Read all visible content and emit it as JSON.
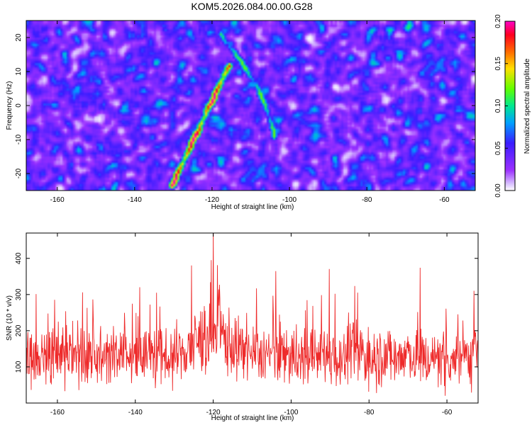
{
  "title": "KOM5.2026.084.00.00.G28",
  "colors": {
    "signal_line": "#ee2a2a",
    "frame": "#000000",
    "background": "#ffffff",
    "colormap": [
      "#ffffff",
      "#9b30ff",
      "#3a1cff",
      "#00a0ff",
      "#00e890",
      "#60ff00",
      "#ffe000",
      "#ff6a00",
      "#ff0020",
      "#ff00c8"
    ]
  },
  "chart_data": [
    {
      "type": "heatmap",
      "name": "spectrogram",
      "xlabel": "Height of straight line (km)",
      "ylabel": "Frequency (Hz)",
      "xlim": [
        -168,
        -52
      ],
      "ylim": [
        -25,
        25
      ],
      "xticks": [
        -160,
        -140,
        -120,
        -100,
        -80,
        -60
      ],
      "yticks": [
        -20,
        -10,
        0,
        10,
        20
      ],
      "grid": false,
      "colorbar": {
        "label": "Normalized spectral amplitude",
        "range": [
          0.0,
          0.2
        ],
        "ticks": [
          "0.00",
          "0.05",
          "0.10",
          "0.15",
          "0.20"
        ]
      },
      "noise_level": 0.05,
      "features": [
        {
          "kind": "ridge",
          "from": [
            -130.5,
            -23
          ],
          "to": [
            -116,
            12
          ],
          "peak": 0.2
        },
        {
          "kind": "arc",
          "from": [
            -104,
            -9
          ],
          "to": [
            -118,
            21
          ],
          "peak": 0.12
        }
      ]
    },
    {
      "type": "line",
      "name": "snr-trace",
      "xlabel": "Height of straight line (km)",
      "ylabel": "SNR (10 * v/v)",
      "xlim": [
        -168,
        -52
      ],
      "ylim": [
        0,
        470
      ],
      "xticks": [
        -160,
        -140,
        -120,
        -100,
        -80,
        -60
      ],
      "yticks": [
        100,
        200,
        300,
        400
      ],
      "grid": false,
      "series": [
        {
          "name": "SNR",
          "baseline": 130,
          "spread": 60,
          "max_value": 470,
          "max_at": -120
        }
      ]
    }
  ]
}
